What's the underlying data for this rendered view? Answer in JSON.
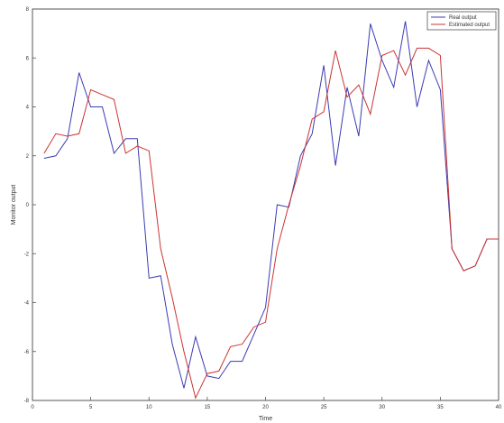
{
  "chart_data": {
    "type": "line",
    "xlabel": "Time",
    "ylabel": "Monitor output",
    "xlim": [
      0,
      40
    ],
    "ylim": [
      -8,
      8
    ],
    "x_ticks": [
      0,
      5,
      10,
      15,
      20,
      25,
      30,
      35,
      40
    ],
    "y_ticks": [
      -8,
      -6,
      -4,
      -2,
      0,
      2,
      4,
      6,
      8
    ],
    "grid": false,
    "legend_position": "top-right",
    "series": [
      {
        "name": "Real output",
        "color": "#3b3bb3",
        "x": [
          1,
          2,
          3,
          4,
          5,
          6,
          7,
          8,
          9,
          10,
          11,
          12,
          13,
          14,
          15,
          16,
          17,
          18,
          19,
          20,
          21,
          22,
          23,
          24,
          25,
          26,
          27,
          28,
          29,
          30,
          31,
          32,
          33,
          34,
          35,
          36,
          37,
          38,
          39,
          40
        ],
        "values": [
          1.9,
          2.0,
          2.7,
          5.4,
          4.0,
          4.0,
          2.1,
          2.7,
          2.7,
          -3.0,
          -2.9,
          -5.7,
          -7.5,
          -5.4,
          -7.0,
          -7.1,
          -6.4,
          -6.4,
          -5.3,
          -4.2,
          0.0,
          -0.1,
          2.0,
          2.9,
          5.7,
          1.6,
          4.8,
          2.8,
          7.4,
          5.9,
          4.8,
          7.5,
          4.0,
          5.9,
          4.7,
          -1.8,
          -2.7,
          -2.5,
          -1.4,
          -1.4
        ]
      },
      {
        "name": "Estimated output",
        "color": "#cc3333",
        "x": [
          1,
          2,
          3,
          4,
          5,
          6,
          7,
          8,
          9,
          10,
          11,
          12,
          13,
          14,
          15,
          16,
          17,
          18,
          19,
          20,
          21,
          22,
          23,
          24,
          25,
          26,
          27,
          28,
          29,
          30,
          31,
          32,
          33,
          34,
          35,
          36,
          37,
          38,
          39,
          40
        ],
        "values": [
          2.1,
          2.9,
          2.8,
          2.9,
          4.7,
          4.5,
          4.3,
          2.1,
          2.4,
          2.2,
          -1.8,
          -3.8,
          -6.0,
          -7.9,
          -6.9,
          -6.8,
          -5.8,
          -5.7,
          -5.0,
          -4.8,
          -1.8,
          0.0,
          1.6,
          3.5,
          3.8,
          6.3,
          4.4,
          4.9,
          3.7,
          6.1,
          6.3,
          5.3,
          6.4,
          6.4,
          6.1,
          -1.8,
          -2.7,
          -2.5,
          -1.4,
          -1.4
        ]
      }
    ]
  }
}
